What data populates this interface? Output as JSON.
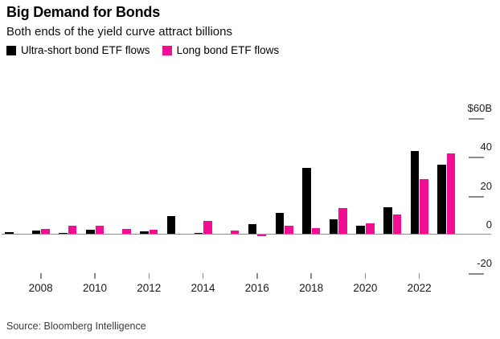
{
  "header": {
    "title": "Big Demand for Bonds",
    "subtitle": "Both ends of the yield curve attract billions"
  },
  "legend": [
    {
      "label": "Ultra-short bond ETF flows",
      "color": "#000000"
    },
    {
      "label": "Long bond ETF flows",
      "color": "#f20d92"
    }
  ],
  "source": "Source: Bloomberg Intelligence",
  "colors": {
    "ultra_short": "#000000",
    "long_bond": "#f20d92",
    "axis_line": "#8f8f8f",
    "tick": "#8a8a8a",
    "axis_text": "#1a1a1a",
    "background": "#ffffff"
  },
  "chart_data": {
    "type": "bar",
    "title": "Big Demand for Bonds",
    "subtitle": "Both ends of the yield curve attract billions",
    "unit": "billions USD",
    "categories": [
      2007,
      2008,
      2009,
      2010,
      2011,
      2012,
      2013,
      2014,
      2015,
      2016,
      2017,
      2018,
      2019,
      2020,
      2021,
      2022,
      2023
    ],
    "series": [
      {
        "name": "Ultra-short bond ETF flows",
        "color": "#000000",
        "values": [
          1.2,
          2,
          0.7,
          2.5,
          0.3,
          1.5,
          9.5,
          1,
          0.5,
          5.5,
          11,
          34.5,
          8,
          4.5,
          14,
          43,
          36
        ]
      },
      {
        "name": "Long bond ETF flows",
        "color": "#f20d92",
        "values": [
          0.5,
          3,
          4.5,
          4.5,
          3,
          2.5,
          0.5,
          7,
          2,
          -1,
          4.5,
          3.5,
          13.5,
          6,
          10.5,
          28.5,
          42
        ]
      }
    ],
    "y_axis": {
      "side": "right",
      "tick_labels": [
        "$60B",
        "40",
        "20",
        "0",
        "-20"
      ],
      "tick_values": [
        60,
        40,
        20,
        0,
        -20
      ],
      "ylim": [
        -25,
        65
      ]
    },
    "x_axis": {
      "tick_years": [
        2008,
        2010,
        2012,
        2014,
        2016,
        2018,
        2020,
        2022
      ]
    },
    "grid": false,
    "legend_position": "top-left"
  }
}
